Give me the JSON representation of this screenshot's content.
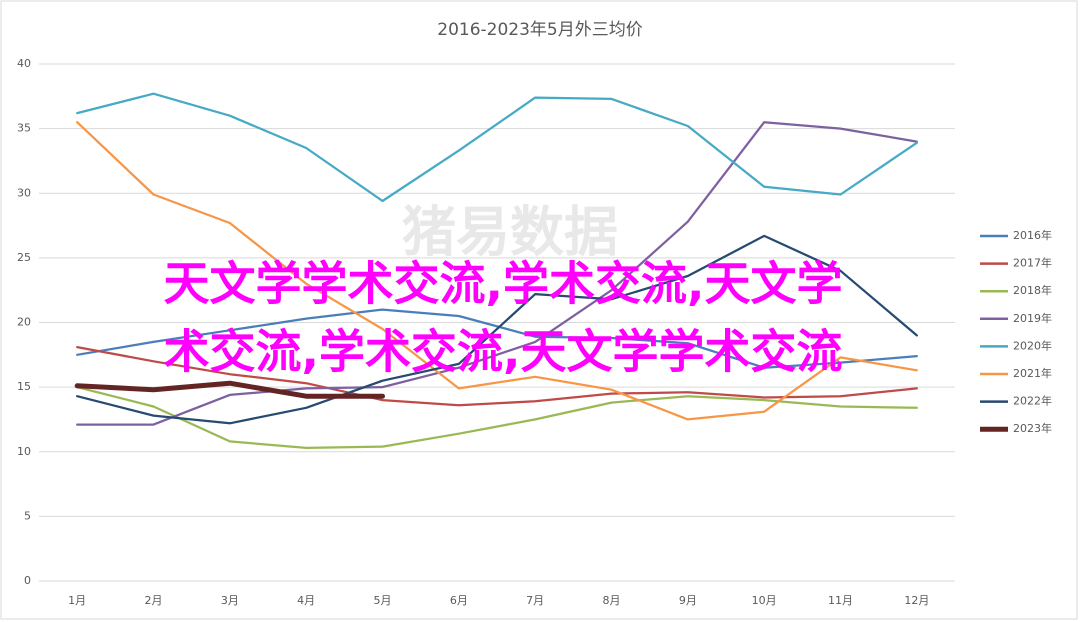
{
  "chart_data": {
    "type": "line",
    "title": "2016-2023年5月外三均价",
    "watermark": "猪易数据",
    "overlay_text": [
      "天文学学术交流,学术交流,天文学",
      "术交流,学术交流,天文学学术交流"
    ],
    "categories": [
      "1月",
      "2月",
      "3月",
      "4月",
      "5月",
      "6月",
      "7月",
      "8月",
      "9月",
      "10月",
      "11月",
      "12月"
    ],
    "ylim": [
      0,
      40
    ],
    "yticks": [
      0,
      5,
      10,
      15,
      20,
      25,
      30,
      35,
      40
    ],
    "grid": true,
    "legend": "right",
    "series": [
      {
        "name": "2016年",
        "color": "#4a7ebb",
        "values": [
          17.5,
          18.5,
          19.4,
          20.3,
          21.0,
          20.5,
          18.9,
          18.8,
          18.4,
          16.5,
          16.9,
          17.4
        ]
      },
      {
        "name": "2017年",
        "color": "#be4b48",
        "values": [
          18.1,
          17.0,
          16.0,
          15.3,
          14.0,
          13.6,
          13.9,
          14.5,
          14.6,
          14.2,
          14.3,
          14.9
        ]
      },
      {
        "name": "2018年",
        "color": "#98b954",
        "values": [
          15.0,
          13.5,
          10.8,
          10.3,
          10.4,
          11.4,
          12.5,
          13.8,
          14.3,
          14.0,
          13.5,
          13.4
        ]
      },
      {
        "name": "2019年",
        "color": "#7d60a0",
        "values": [
          12.1,
          12.1,
          14.4,
          14.9,
          15.0,
          16.5,
          18.5,
          22.5,
          27.8,
          35.5,
          35.0,
          34.0
        ]
      },
      {
        "name": "2020年",
        "color": "#46aac5",
        "values": [
          36.2,
          37.7,
          36.0,
          33.5,
          29.4,
          33.3,
          37.4,
          37.3,
          35.2,
          30.5,
          29.9,
          33.9
        ]
      },
      {
        "name": "2021年",
        "color": "#f79646",
        "values": [
          35.5,
          29.9,
          27.7,
          23.0,
          19.5,
          14.9,
          15.8,
          14.8,
          12.5,
          13.1,
          17.3,
          16.3
        ]
      },
      {
        "name": "2022年",
        "color": "#264a72",
        "values": [
          14.3,
          12.8,
          12.2,
          13.4,
          15.5,
          16.8,
          22.2,
          21.8,
          23.6,
          26.7,
          24.0,
          19.0
        ]
      },
      {
        "name": "2023年",
        "color": "#632523",
        "width": 5,
        "values": [
          15.1,
          14.8,
          15.3,
          14.3,
          14.3,
          null,
          null,
          null,
          null,
          null,
          null,
          null
        ]
      }
    ]
  }
}
